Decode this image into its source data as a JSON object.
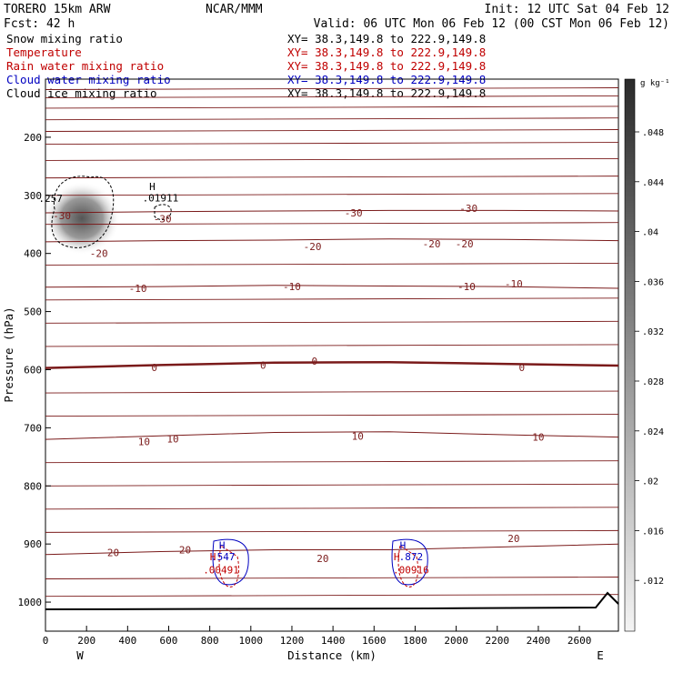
{
  "header": {
    "model": "TORERO  15km ARW",
    "center": "NCAR/MMM",
    "init": "Init: 12 UTC Sat 04 Feb 12",
    "fcst": "Fcst:   42 h",
    "valid": "Valid: 06 UTC Mon 06 Feb 12 (00 CST Mon 06 Feb 12)"
  },
  "fields": [
    {
      "name": "Snow mixing ratio",
      "xy": "XY=  38.3,149.8 to 222.9,149.8",
      "color": "#000000"
    },
    {
      "name": "Temperature",
      "xy": "XY=  38.3,149.8 to 222.9,149.8",
      "color": "#c00000"
    },
    {
      "name": "Rain water mixing ratio",
      "xy": "XY=  38.3,149.8 to 222.9,149.8",
      "color": "#c00000"
    },
    {
      "name": "Cloud water mixing ratio",
      "xy": "XY=  38.3,149.8 to 222.9,149.8",
      "color": "#0000c0"
    },
    {
      "name": "Cloud ice mixing ratio",
      "xy": "XY=  38.3,149.8 to 222.9,149.8",
      "color": "#000000"
    }
  ],
  "colorbar": {
    "units": "g kg⁻¹",
    "labels": [
      ".048",
      ".044",
      ".04",
      ".036",
      ".032",
      ".028",
      ".024",
      ".02",
      ".016",
      ".012"
    ]
  },
  "colors": {
    "isotherm": "#7a1a1a",
    "zero_isotherm": "#7a1a1a",
    "cloud_water": "#0000c0",
    "rain": "#c00000",
    "ground": "#000000"
  },
  "chart_data": {
    "type": "contour",
    "xlabel": "Distance (km)",
    "ylabel": "Pressure (hPa)",
    "x_ticks": [
      0,
      200,
      400,
      600,
      800,
      1000,
      1200,
      1400,
      1600,
      1800,
      2000,
      2200,
      2400,
      2600
    ],
    "y_ticks": [
      200,
      300,
      400,
      500,
      600,
      700,
      800,
      900,
      1000
    ],
    "xlim": [
      0,
      2790
    ],
    "ylim": [
      1050,
      100
    ],
    "left_end_label": "W",
    "right_end_label": "E",
    "isotherms": [
      {
        "label": "-30",
        "y": [
          330,
          328,
          327,
          326,
          326,
          327
        ]
      },
      {
        "label": "-20",
        "y": [
          380,
          378,
          377,
          375,
          376,
          378
        ]
      },
      {
        "label": "-10",
        "y": [
          458,
          457,
          455,
          456,
          457,
          460
        ]
      },
      {
        "label": "0",
        "y": [
          597,
          592,
          588,
          587,
          590,
          593
        ]
      },
      {
        "label": "10",
        "y": [
          720,
          714,
          708,
          707,
          712,
          716
        ]
      },
      {
        "label": "20",
        "y": [
          918,
          913,
          910,
          910,
          905,
          900
        ]
      }
    ],
    "contour_labels": [
      {
        "text": "-30",
        "x": 80,
        "p": 335,
        "series": "temp"
      },
      {
        "text": "-30",
        "x": 570,
        "p": 340,
        "series": "temp"
      },
      {
        "text": "-30",
        "x": 1500,
        "p": 330,
        "series": "temp"
      },
      {
        "text": "-30",
        "x": 2060,
        "p": 322,
        "series": "temp"
      },
      {
        "text": "-20",
        "x": 260,
        "p": 400,
        "series": "temp"
      },
      {
        "text": "-20",
        "x": 1300,
        "p": 388,
        "series": "temp"
      },
      {
        "text": "-20",
        "x": 1880,
        "p": 383,
        "series": "temp"
      },
      {
        "text": "-20",
        "x": 2040,
        "p": 383,
        "series": "temp"
      },
      {
        "text": "-10",
        "x": 450,
        "p": 460,
        "series": "temp"
      },
      {
        "text": "-10",
        "x": 1200,
        "p": 457,
        "series": "temp"
      },
      {
        "text": "-10",
        "x": 2050,
        "p": 457,
        "series": "temp"
      },
      {
        "text": "-10",
        "x": 2280,
        "p": 452,
        "series": "temp"
      },
      {
        "text": "0",
        "x": 530,
        "p": 596,
        "series": "temp"
      },
      {
        "text": "0",
        "x": 1060,
        "p": 592,
        "series": "temp"
      },
      {
        "text": "0",
        "x": 1310,
        "p": 585,
        "series": "temp"
      },
      {
        "text": "0",
        "x": 2320,
        "p": 596,
        "series": "temp"
      },
      {
        "text": "10",
        "x": 480,
        "p": 724,
        "series": "temp"
      },
      {
        "text": "10",
        "x": 620,
        "p": 719,
        "series": "temp"
      },
      {
        "text": "10",
        "x": 1520,
        "p": 714,
        "series": "temp"
      },
      {
        "text": "10",
        "x": 2400,
        "p": 716,
        "series": "temp"
      },
      {
        "text": "20",
        "x": 330,
        "p": 915,
        "series": "temp"
      },
      {
        "text": "20",
        "x": 680,
        "p": 910,
        "series": "temp"
      },
      {
        "text": "20",
        "x": 1350,
        "p": 925,
        "series": "temp"
      },
      {
        "text": "20",
        "x": 2280,
        "p": 890,
        "series": "temp"
      },
      {
        "text": ".257",
        "x": 25,
        "p": 305,
        "series": "cloud_ice"
      },
      {
        "text": ".01911",
        "x": 560,
        "p": 304,
        "series": "cloud_ice"
      },
      {
        "text": ".547",
        "x": 865,
        "p": 922,
        "series": "cloud_water"
      },
      {
        "text": ".00491",
        "x": 855,
        "p": 944,
        "series": "rain"
      },
      {
        "text": ".872",
        "x": 1780,
        "p": 922,
        "series": "cloud_water"
      },
      {
        "text": ".00916",
        "x": 1780,
        "p": 944,
        "series": "rain"
      }
    ],
    "highs": [
      {
        "text": "H",
        "x": 520,
        "p": 285,
        "series": "cloud_ice"
      },
      {
        "text": "H",
        "x": 860,
        "p": 902,
        "series": "cloud_water"
      },
      {
        "text": "H",
        "x": 815,
        "p": 922,
        "series": "rain"
      },
      {
        "text": "H",
        "x": 1740,
        "p": 902,
        "series": "cloud_water"
      },
      {
        "text": "H",
        "x": 1710,
        "p": 922,
        "series": "rain"
      }
    ]
  }
}
